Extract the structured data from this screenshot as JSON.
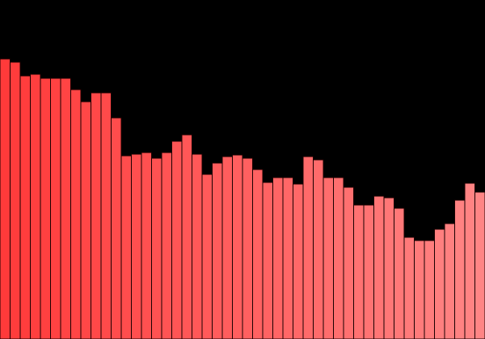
{
  "chart_data": {
    "type": "bar",
    "title": "",
    "xlabel": "",
    "ylabel": "",
    "ylim": [
      0,
      100
    ],
    "grid": false,
    "legend": "none",
    "colors": {
      "background": "#000000",
      "bar_start": "#ff3a3a",
      "bar_end": "#ff8585",
      "bar_edge": "#1a0000"
    },
    "values": [
      82.6,
      81.7,
      77.6,
      78.1,
      76.9,
      76.9,
      76.9,
      73.6,
      70.0,
      72.6,
      72.6,
      65.2,
      54.0,
      54.5,
      55.0,
      53.3,
      55.0,
      58.3,
      60.2,
      54.5,
      48.6,
      51.9,
      53.8,
      54.3,
      53.3,
      50.0,
      46.2,
      47.6,
      47.6,
      45.7,
      53.8,
      52.9,
      47.6,
      47.6,
      44.8,
      39.5,
      39.5,
      42.1,
      41.7,
      38.6,
      30.0,
      29.0,
      29.0,
      32.4,
      34.0,
      41.0,
      46.0,
      43.3
    ]
  }
}
